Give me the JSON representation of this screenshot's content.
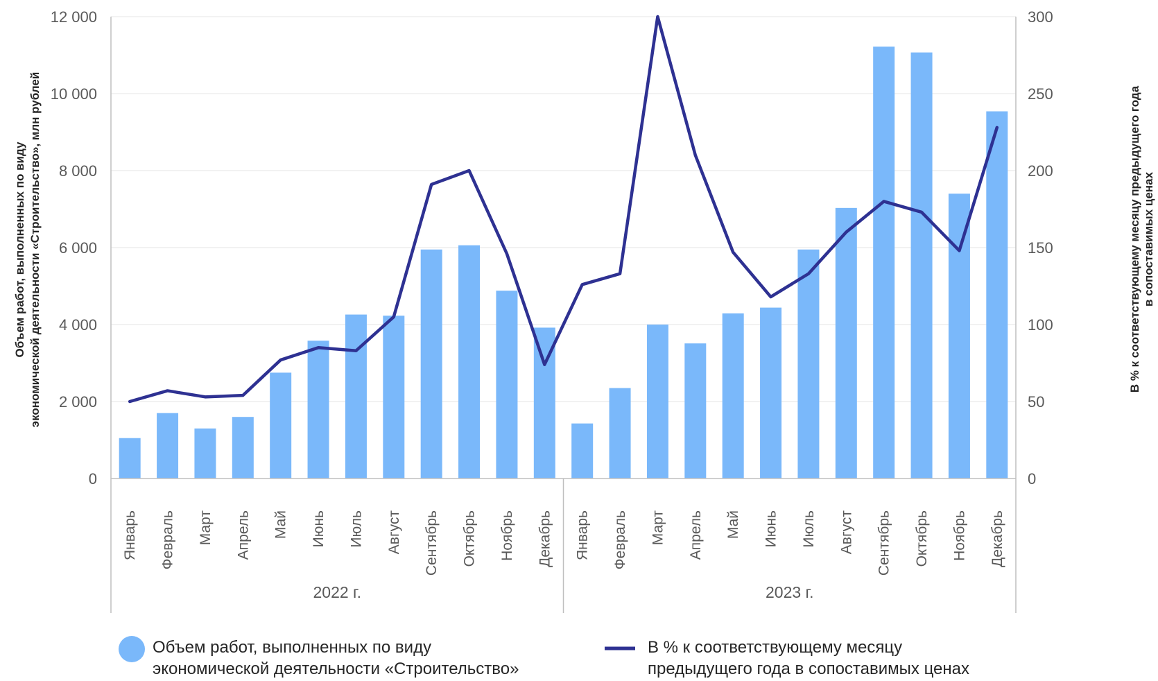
{
  "chart_data": {
    "type": "bar+line",
    "categories": [
      "Январь",
      "Февраль",
      "Март",
      "Апрель",
      "Май",
      "Июнь",
      "Июль",
      "Август",
      "Сентябрь",
      "Октябрь",
      "Ноябрь",
      "Декабрь",
      "Январь",
      "Февраль",
      "Март",
      "Апрель",
      "Май",
      "Июнь",
      "Июль",
      "Август",
      "Сентябрь",
      "Октябрь",
      "Ноябрь",
      "Декабрь"
    ],
    "groups": [
      {
        "label": "2022 г.",
        "count": 12
      },
      {
        "label": "2023 г.",
        "count": 12
      }
    ],
    "series": [
      {
        "name": "Объем работ, выполненных по виду экономической деятельности «Строительство»",
        "type": "bar",
        "axis": "left",
        "color": "#7ab8fa",
        "values": [
          1050,
          1700,
          1300,
          1600,
          2750,
          3580,
          4260,
          4230,
          5950,
          6060,
          4880,
          3920,
          1430,
          2350,
          4000,
          3510,
          4290,
          4440,
          5950,
          7030,
          11220,
          11070,
          7400,
          9540
        ]
      },
      {
        "name": "В % к соответствующему месяцу предыдущего года в сопоставимых ценах",
        "type": "line",
        "axis": "right",
        "color": "#2e3192",
        "values": [
          50,
          57,
          53,
          54,
          77,
          85,
          83,
          105,
          191,
          200,
          146,
          74,
          126,
          133,
          300,
          210,
          147,
          118,
          133,
          160,
          180,
          173,
          148,
          228
        ]
      }
    ],
    "y_left": {
      "label": "Объем работ, выполненных по виду экономической деятельности «Строительство», млн рублей",
      "label_lines": [
        "Объем работ, выполненных по виду",
        "экономической деятельности «Строительство», млн рублей"
      ],
      "range": [
        0,
        12000
      ],
      "ticks": [
        0,
        2000,
        4000,
        6000,
        8000,
        10000,
        12000
      ],
      "tick_labels": [
        "0",
        "2 000",
        "4 000",
        "6 000",
        "8 000",
        "10 000",
        "12 000"
      ]
    },
    "y_right": {
      "label": "В % к соответствующему месяцу предыдущего года в сопоставимых ценах",
      "label_lines": [
        "В % к соответствующему месяцу предыдущего года",
        "в сопоставимых ценах"
      ],
      "range": [
        0,
        300
      ],
      "ticks": [
        0,
        50,
        100,
        150,
        200,
        250,
        300
      ],
      "tick_labels": [
        "0",
        "50",
        "100",
        "150",
        "200",
        "250",
        "300"
      ]
    },
    "grid": true,
    "legend_position": "bottom"
  },
  "legend": {
    "bar_lines": [
      "Объем работ, выполненных по виду",
      "экономической деятельности «Строительство»"
    ],
    "line_lines": [
      "В % к соответствующему месяцу",
      "предыдущего года в сопоставимых ценах"
    ]
  }
}
